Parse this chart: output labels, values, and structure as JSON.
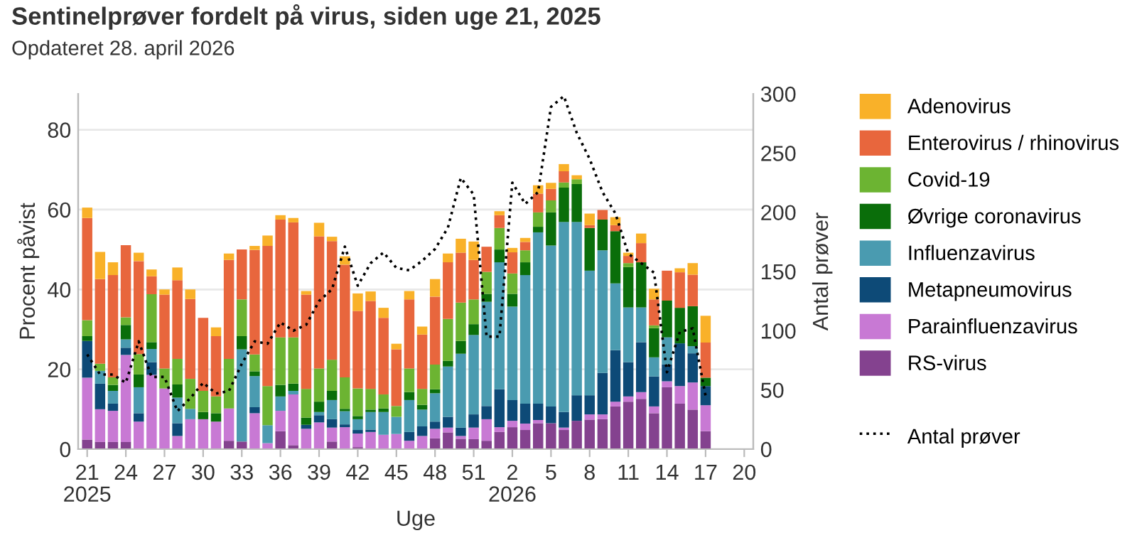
{
  "chart_data": {
    "type": "bar",
    "stacked": true,
    "title": "Sentinelprøver fordelt på virus, siden uge 21, 2025",
    "subtitle": "Opdateret 28. april 2026",
    "xlabel": "Uge",
    "ylabel": "Procent påvist",
    "y2label": "Antal prøver",
    "categories": [
      "21\n2025",
      null,
      null,
      "24",
      null,
      null,
      "27",
      null,
      null,
      "30",
      null,
      null,
      "33",
      null,
      null,
      "36",
      null,
      null,
      "39",
      null,
      null,
      "42",
      null,
      null,
      "45",
      null,
      null,
      "48",
      null,
      null,
      "51",
      null,
      null,
      "2\n2026",
      null,
      null,
      "5",
      null,
      null,
      "8",
      null,
      null,
      "11",
      null,
      null,
      "14",
      null,
      null,
      "17",
      null,
      null,
      "20"
    ],
    "ylim": [
      0,
      89
    ],
    "yticks": [
      0,
      20,
      40,
      60,
      80
    ],
    "y2lim": [
      0,
      300
    ],
    "y2ticks": [
      0,
      50,
      100,
      150,
      200,
      250,
      300
    ],
    "grid": "y",
    "legend": "right",
    "series": [
      {
        "name": "RS-virus",
        "color": "#84428f",
        "values": [
          2.4,
          1.8,
          1.8,
          1.8,
          0,
          0,
          0,
          0,
          0,
          0,
          0,
          2.1,
          1.9,
          0,
          0,
          4.5,
          1.0,
          0,
          0,
          1.9,
          0,
          0.5,
          0,
          0,
          0,
          0,
          0,
          2.7,
          4.2,
          2.6,
          2.5,
          2.1,
          4.3,
          5.5,
          4.8,
          6.5,
          6.5,
          4.8,
          7.1,
          7.4,
          7.5,
          10.7,
          11.9,
          12.6,
          9.0,
          15.5,
          11.4,
          9.9,
          4.5,
          null,
          null,
          null
        ]
      },
      {
        "name": "Parainfluenzavirus",
        "color": "#c879d4",
        "values": [
          15.5,
          8.2,
          7.8,
          21.8,
          6.9,
          18.6,
          15.2,
          3.3,
          7.5,
          7.5,
          6.9,
          8.1,
          0,
          9.0,
          1.5,
          5.1,
          12.7,
          5.1,
          6.7,
          3.5,
          5.5,
          3.4,
          4.3,
          3.6,
          3.8,
          2.1,
          3.3,
          2.4,
          1.2,
          0.7,
          2.9,
          5.4,
          1.2,
          1.6,
          1.6,
          0.8,
          0,
          0.6,
          0,
          1.3,
          1.2,
          1.2,
          1.3,
          1.7,
          1.7,
          1.5,
          4.4,
          6.8,
          6.5,
          null,
          null,
          null
        ]
      },
      {
        "name": "Metapneumovirus",
        "color": "#0d4a77",
        "values": [
          9.2,
          6.4,
          1.8,
          1.8,
          2.1,
          3.2,
          0,
          3.2,
          0,
          0,
          0,
          0,
          0,
          1.5,
          0,
          0,
          0,
          1.0,
          1.8,
          2.1,
          0.7,
          0.9,
          0.6,
          0,
          0,
          2.2,
          2.4,
          1.8,
          2.7,
          2.1,
          3.3,
          3.3,
          9.5,
          5.2,
          5.0,
          4.1,
          4.2,
          3.9,
          6.4,
          4.8,
          10.4,
          12.9,
          8.6,
          12.5,
          7.5,
          4.2,
          10.7,
          7.3,
          4.8,
          null,
          null,
          null
        ]
      },
      {
        "name": "Influenzavirus",
        "color": "#4a9bb0",
        "values": [
          0,
          3.2,
          3.2,
          2.1,
          6.5,
          3.3,
          0,
          6.4,
          2.6,
          0,
          0,
          0,
          23.1,
          7.8,
          4.5,
          3.6,
          0.9,
          0,
          0.8,
          4.8,
          3.3,
          2.7,
          4.4,
          5.7,
          4.3,
          8.0,
          4.2,
          7.1,
          12.6,
          18.5,
          19.9,
          26.1,
          31.8,
          23.4,
          32.2,
          42.9,
          40.3,
          47.6,
          43.4,
          31.2,
          30.7,
          16.7,
          13.7,
          8.7,
          4.8,
          6.8,
          0,
          1.8,
          0,
          null,
          null,
          null
        ]
      },
      {
        "name": "Øvrige coronavirus",
        "color": "#0a6e0a",
        "values": [
          1.2,
          0,
          1.5,
          3.6,
          3.2,
          1.7,
          0,
          3.3,
          0,
          1.8,
          2.1,
          0,
          3.3,
          1.2,
          0,
          2.9,
          1.8,
          1.8,
          2.6,
          2.3,
          0.6,
          0.8,
          0.6,
          0.9,
          0,
          2.0,
          1.2,
          1.0,
          1.4,
          3.2,
          2.7,
          2.0,
          3.2,
          3.2,
          3.2,
          1.4,
          8.3,
          8.6,
          9.5,
          10.7,
          7.7,
          13.1,
          10.1,
          11.3,
          7.3,
          9.2,
          8.9,
          10.0,
          2.1,
          null,
          null,
          null
        ]
      },
      {
        "name": "Covid-19",
        "color": "#6cb432",
        "values": [
          4.0,
          1.8,
          1.9,
          1.9,
          5.1,
          12.0,
          5.0,
          6.4,
          7.5,
          5.3,
          4.2,
          12.4,
          9.2,
          4.2,
          9.8,
          11.9,
          11.6,
          7.2,
          8.3,
          7.8,
          7.9,
          6.9,
          5.2,
          3.5,
          2.7,
          5.9,
          4.0,
          6.2,
          10.5,
          9.6,
          6.2,
          5.5,
          5.4,
          5.1,
          3.0,
          3.6,
          3.0,
          1.3,
          1.2,
          0,
          0,
          0,
          1.0,
          0,
          0.7,
          0,
          0,
          0,
          0,
          null,
          null,
          null
        ]
      },
      {
        "name": "Enterovirus / rhinovirus",
        "color": "#e8663d",
        "values": [
          25.6,
          21.2,
          25.6,
          18.1,
          23.3,
          4.5,
          18.5,
          19.7,
          20.0,
          18.3,
          15.1,
          24.8,
          12.5,
          26.2,
          35.1,
          29.5,
          28.8,
          23.6,
          33.1,
          29.7,
          28.2,
          19.4,
          22.0,
          19.2,
          14.2,
          17.3,
          13.6,
          17.0,
          14.2,
          12.5,
          9.9,
          6.3,
          3.2,
          5.3,
          2.1,
          4.7,
          2.9,
          2.8,
          0,
          0.7,
          2.4,
          1.5,
          1.8,
          4.8,
          6.5,
          7.5,
          8.9,
          7.9,
          8.8,
          null,
          null,
          null
        ]
      },
      {
        "name": "Adenovirus",
        "color": "#f9b129",
        "values": [
          2.6,
          6.8,
          3.2,
          0,
          2.1,
          1.7,
          1.3,
          3.2,
          2.4,
          0,
          2.2,
          1.6,
          0,
          1.0,
          2.6,
          1.1,
          1.1,
          0.9,
          3.4,
          1.1,
          2.1,
          4.4,
          2.4,
          2.5,
          1.4,
          2.1,
          2.0,
          4.4,
          2.2,
          3.5,
          4.6,
          0,
          1.0,
          1.1,
          1.0,
          2.1,
          1.5,
          1.8,
          1.0,
          2.9,
          0,
          2.0,
          0.8,
          2.4,
          2.7,
          0,
          1.0,
          2.9,
          6.7,
          null,
          null,
          null
        ]
      },
      {
        "name": "Antal prøver",
        "type": "line",
        "axis": "y2",
        "color": "#000000",
        "line_style": "dotted",
        "values": [
          80,
          63,
          63,
          56,
          91,
          61,
          61,
          32,
          43,
          56,
          47,
          49,
          72,
          91,
          89,
          107,
          100,
          105,
          125,
          135,
          171,
          138,
          157,
          166,
          153,
          151,
          159,
          169,
          187,
          229,
          215,
          95,
          95,
          225,
          207,
          217,
          289,
          298,
          267,
          245,
          217,
          199,
          165,
          157,
          149,
          65,
          99,
          102,
          45,
          null,
          null,
          null
        ]
      }
    ]
  }
}
